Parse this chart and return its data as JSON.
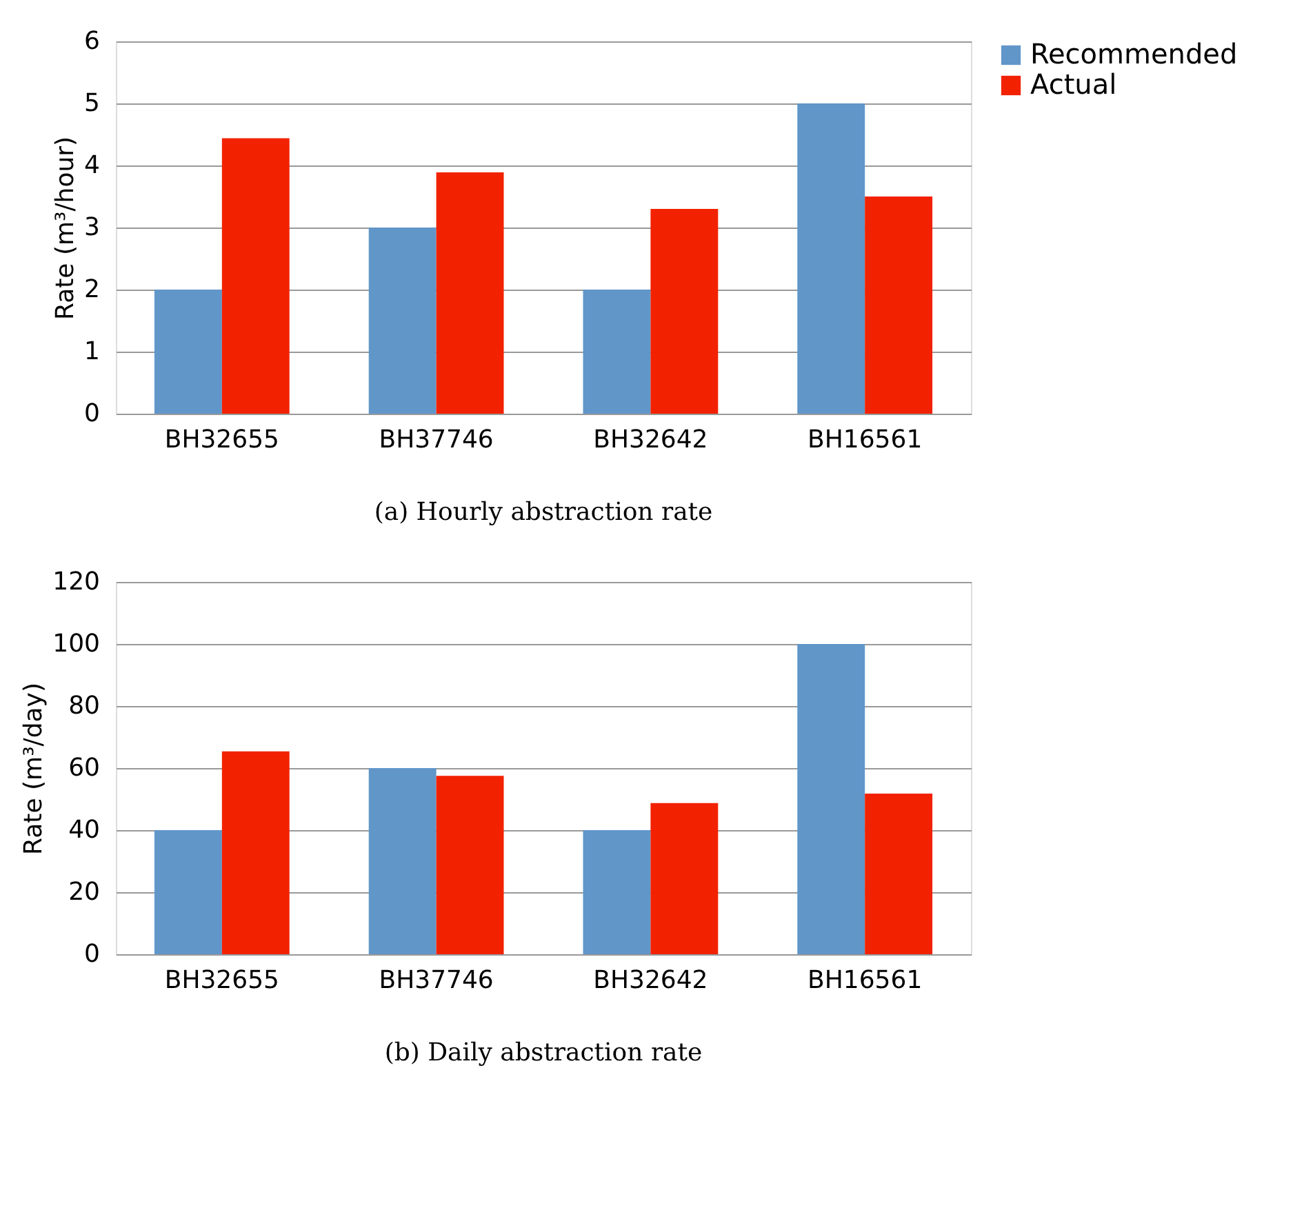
{
  "chart_data": [
    {
      "type": "bar",
      "title": "(a) Hourly abstraction rate",
      "ylabel": "Rate (m³/hour)",
      "categories": [
        "BH32655",
        "BH37746",
        "BH32642",
        "BH16561"
      ],
      "series": [
        {
          "name": "Recommended",
          "color": "#6196c9",
          "values": [
            2,
            3,
            2,
            5
          ]
        },
        {
          "name": "Actual",
          "color": "#f22200",
          "values": [
            4.44,
            3.89,
            3.3,
            3.5
          ]
        }
      ],
      "ylim": [
        0,
        6
      ],
      "yticks": [
        0,
        1,
        2,
        3,
        4,
        5,
        6
      ],
      "grid": "y",
      "legend": "right"
    },
    {
      "type": "bar",
      "title": "(b) Daily abstraction rate",
      "ylabel": "Rate (m³/day)",
      "categories": [
        "BH32655",
        "BH37746",
        "BH32642",
        "BH16561"
      ],
      "series": [
        {
          "name": "Recommended",
          "color": "#6196c9",
          "values": [
            40,
            60,
            40,
            100
          ]
        },
        {
          "name": "Actual",
          "color": "#f22200",
          "values": [
            65.4,
            57.5,
            48.7,
            51.8
          ]
        }
      ],
      "ylim": [
        0,
        120
      ],
      "yticks": [
        0,
        20,
        40,
        60,
        80,
        100,
        120
      ],
      "grid": "y",
      "legend": "right"
    }
  ]
}
